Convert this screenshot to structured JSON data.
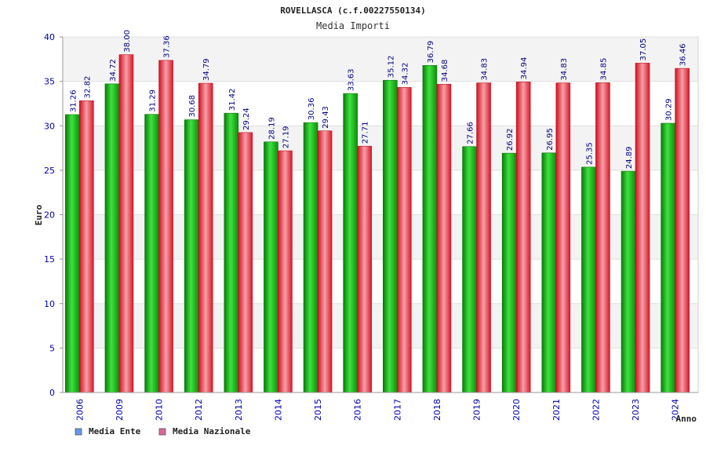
{
  "chart_data": {
    "type": "bar",
    "title": "ROVELLASCA (c.f.00227550134)",
    "subtitle": "Media Importi",
    "xlabel": "Anno",
    "ylabel": "Euro",
    "ylim": [
      0,
      40
    ],
    "yticks": [
      0,
      5,
      10,
      15,
      20,
      25,
      30,
      35,
      40
    ],
    "grid": true,
    "legend_position": "bottom-left",
    "categories": [
      "2006",
      "2009",
      "2010",
      "2012",
      "2013",
      "2014",
      "2015",
      "2016",
      "2017",
      "2018",
      "2019",
      "2020",
      "2021",
      "2022",
      "2023",
      "2024"
    ],
    "series": [
      {
        "name": "Media Ente",
        "legend_color": "#6699ee",
        "bar_color": "#11bb11",
        "values": [
          31.26,
          34.72,
          31.29,
          30.68,
          31.42,
          28.19,
          30.36,
          33.63,
          35.12,
          36.79,
          27.66,
          26.92,
          26.95,
          25.35,
          24.89,
          30.29
        ],
        "labels": [
          "31.26",
          "34.72",
          "31.29",
          "30.68",
          "31.42",
          "28.19",
          "30.36",
          "33.63",
          "35.12",
          "36.79",
          "27.66",
          "26.92",
          "26.95",
          "25.35",
          "24.89",
          "30.29"
        ]
      },
      {
        "name": "Media Nazionale",
        "legend_color": "#dd6699",
        "bar_color": "#ee2233",
        "values": [
          32.82,
          38.0,
          37.36,
          34.79,
          29.24,
          27.19,
          29.43,
          27.71,
          34.32,
          34.68,
          34.83,
          34.94,
          34.83,
          34.85,
          37.05,
          36.46
        ],
        "labels": [
          "32.82",
          "38.00",
          "37.36",
          "34.79",
          "29.24",
          "27.19",
          "29.43",
          "27.71",
          "34.32",
          "34.68",
          "34.83",
          "34.94",
          "34.83",
          "34.85",
          "37.05",
          "36.46"
        ]
      }
    ]
  }
}
